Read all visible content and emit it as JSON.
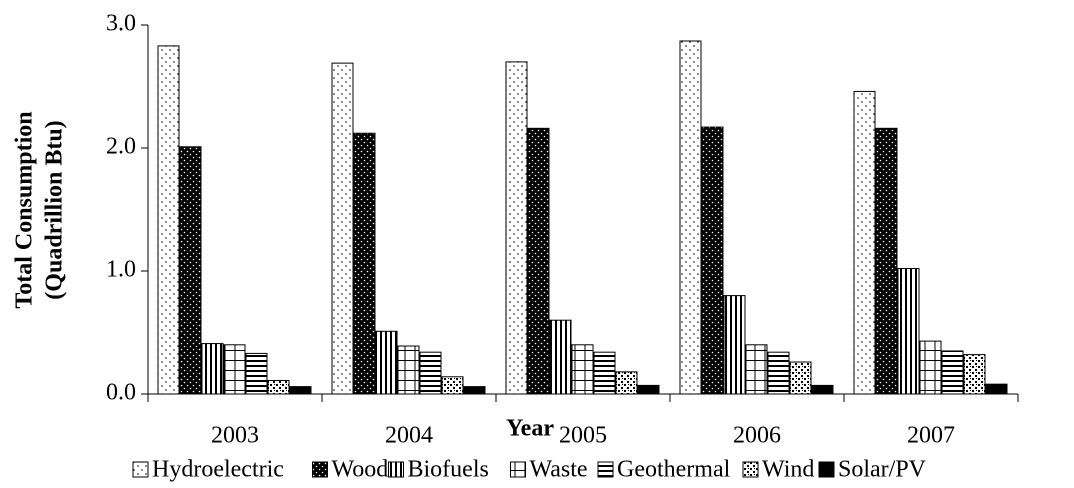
{
  "chart_data": {
    "type": "bar",
    "x_label": "Year",
    "y_label": [
      "Total Consumption",
      "(Quadrillion Btu)"
    ],
    "categories": [
      "2003",
      "2004",
      "2005",
      "2006",
      "2007"
    ],
    "series": [
      {
        "name": "Hydroelectric",
        "values": [
          2.83,
          2.69,
          2.7,
          2.87,
          2.46
        ]
      },
      {
        "name": "Wood",
        "values": [
          2.01,
          2.12,
          2.16,
          2.17,
          2.16
        ]
      },
      {
        "name": "Biofuels",
        "values": [
          0.41,
          0.51,
          0.6,
          0.8,
          1.02
        ]
      },
      {
        "name": "Waste",
        "values": [
          0.4,
          0.39,
          0.4,
          0.4,
          0.43
        ]
      },
      {
        "name": "Geothermal",
        "values": [
          0.33,
          0.34,
          0.34,
          0.34,
          0.35
        ]
      },
      {
        "name": "Wind",
        "values": [
          0.11,
          0.14,
          0.18,
          0.26,
          0.32
        ]
      },
      {
        "name": "Solar/PV",
        "values": [
          0.06,
          0.06,
          0.07,
          0.07,
          0.08
        ]
      }
    ],
    "ylim": [
      0,
      3
    ],
    "yticks": [
      {
        "value": 0,
        "label": "0.0"
      },
      {
        "value": 1,
        "label": "1.0"
      },
      {
        "value": 2,
        "label": "2.0"
      },
      {
        "value": 3,
        "label": "3.0"
      }
    ]
  }
}
